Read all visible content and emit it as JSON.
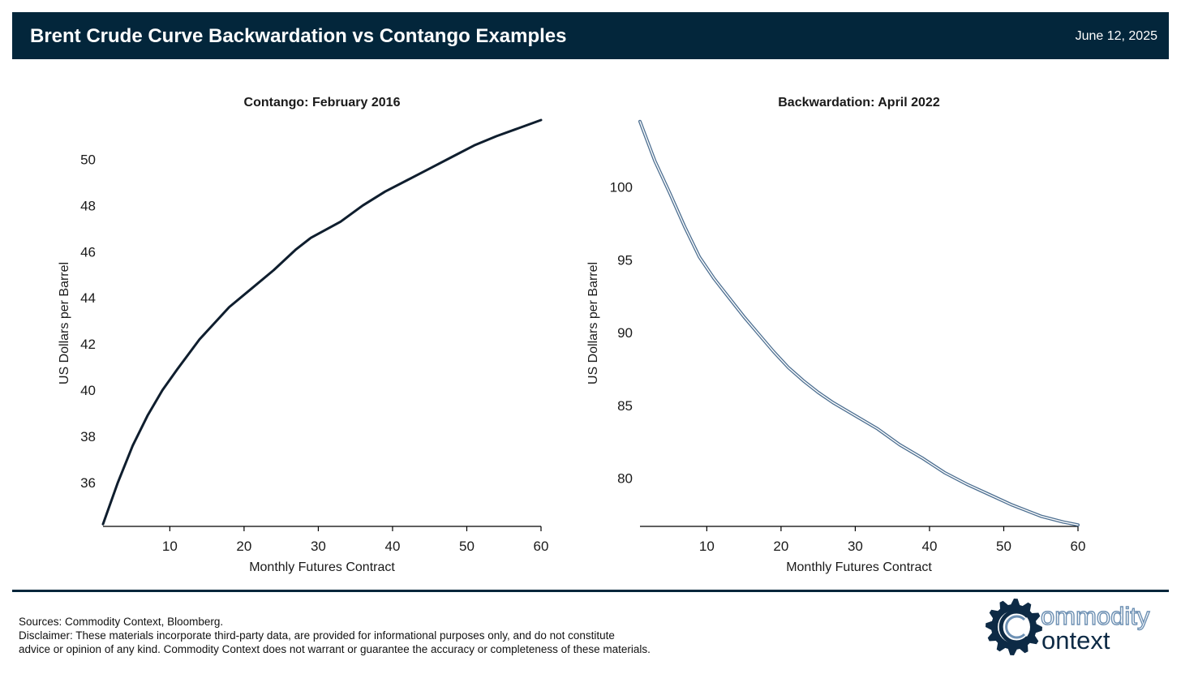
{
  "header": {
    "title": "Brent Crude Curve Backwardation vs Contango Examples",
    "date": "June 12, 2025"
  },
  "colors": {
    "header_bg": "#03263b",
    "contango_line": "#0f1e2e",
    "backwardation_line": "#4d6f91",
    "logo_dark": "#0d2a45",
    "logo_light": "#6d90b3"
  },
  "chart_data": [
    {
      "type": "line",
      "title": "Contango: February 2016",
      "xlabel": "Monthly Futures Contract",
      "ylabel": "US Dollars per Barrel",
      "xlim": [
        1,
        60
      ],
      "ylim": [
        34.1,
        51.7
      ],
      "xticks": [
        10,
        20,
        30,
        40,
        50,
        60
      ],
      "yticks": [
        36,
        38,
        40,
        42,
        44,
        46,
        48,
        50
      ],
      "grid": false,
      "series": [
        {
          "color": "#0f1e2e",
          "x": [
            1,
            3,
            5,
            7,
            9,
            11,
            14,
            18,
            21,
            24,
            27,
            29,
            33,
            36,
            39,
            42,
            45,
            48,
            51,
            54,
            57,
            60
          ],
          "y": [
            34.2,
            36.0,
            37.6,
            38.9,
            40.0,
            40.9,
            42.2,
            43.6,
            44.4,
            45.2,
            46.1,
            46.6,
            47.3,
            48.0,
            48.6,
            49.1,
            49.6,
            50.1,
            50.6,
            51.0,
            51.35,
            51.7
          ]
        }
      ]
    },
    {
      "type": "line",
      "title": "Backwardation: April 2022",
      "xlabel": "Monthly Futures Contract",
      "ylabel": "US Dollars per Barrel",
      "xlim": [
        1,
        60
      ],
      "ylim": [
        76.7,
        104.6
      ],
      "xticks": [
        10,
        20,
        30,
        40,
        50,
        60
      ],
      "yticks": [
        80,
        85,
        90,
        95,
        100
      ],
      "grid": false,
      "series": [
        {
          "color": "#4d6f91",
          "x": [
            1,
            3,
            5,
            7,
            9,
            11,
            13,
            15,
            17,
            19,
            21,
            23,
            25,
            27,
            30,
            33,
            36,
            39,
            42,
            45,
            48,
            51,
            55,
            58,
            60
          ],
          "y": [
            104.5,
            101.8,
            99.6,
            97.3,
            95.2,
            93.7,
            92.4,
            91.1,
            89.9,
            88.7,
            87.6,
            86.7,
            85.9,
            85.2,
            84.3,
            83.4,
            82.3,
            81.4,
            80.4,
            79.6,
            78.9,
            78.2,
            77.4,
            77.0,
            76.8
          ]
        }
      ]
    }
  ],
  "footer": {
    "sources": "Sources: Commodity Context, Bloomberg.",
    "disclaimer_line1": "Disclaimer: These materials incorporate third-party data, are provided for informational purposes only, and do not constitute",
    "disclaimer_line2": "advice or opinion of any kind. Commodity Context does not warrant or guarantee the accuracy or completeness of these materials."
  },
  "logo": {
    "word1": "ommodity",
    "word2": "ontext",
    "icon": "gear-c-logo-icon"
  }
}
